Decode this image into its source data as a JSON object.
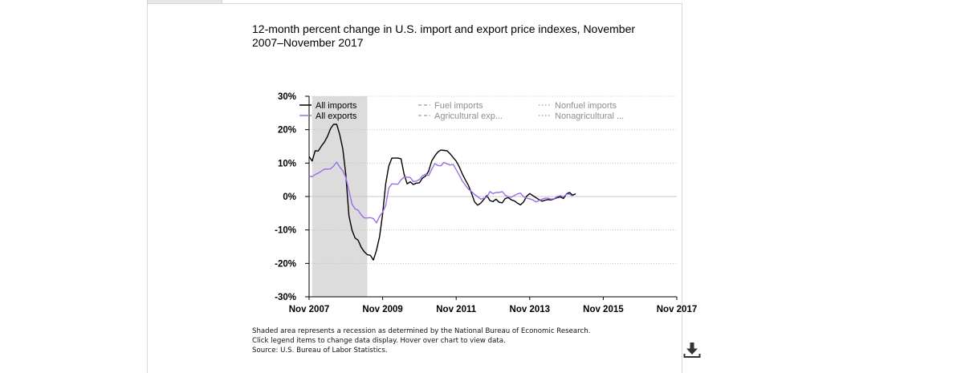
{
  "chart_data": {
    "type": "line",
    "title": "12-month percent change in U.S. import and export price indexes, November 2007–November 2017",
    "yticks": [
      30,
      20,
      10,
      0,
      -10,
      -20,
      -30
    ],
    "ytick_suffix": "%",
    "ylim": [
      -30,
      30
    ],
    "xticks": [
      "Nov 2007",
      "Nov 2009",
      "Nov 2011",
      "Nov 2013",
      "Nov 2015",
      "Nov 2017"
    ],
    "x_start": "Nov 2007",
    "x_end": "Nov 2017",
    "recession": {
      "start": "Dec 2007",
      "end": "Jun 2009"
    },
    "grid": true,
    "legend_position": "top",
    "legend": [
      {
        "label": "All imports",
        "style": "solid",
        "color": "#000000",
        "active": true
      },
      {
        "label": "All exports",
        "style": "solid",
        "color": "#9b6ee6",
        "active": true
      },
      {
        "label": "Fuel imports",
        "style": "dashed",
        "color": "#9a9a9a",
        "active": false
      },
      {
        "label": "Agricultural exp...",
        "style": "dashed",
        "color": "#9a9a9a",
        "active": false
      },
      {
        "label": "Nonfuel imports",
        "style": "dotted",
        "color": "#9a9a9a",
        "active": false
      },
      {
        "label": "Nonagricultural ...",
        "style": "dotted",
        "color": "#9a9a9a",
        "active": false
      }
    ],
    "series": [
      {
        "name": "All imports",
        "color": "#000000",
        "start": "Nov 2007",
        "values": [
          12.0,
          10.6,
          13.7,
          13.6,
          15.1,
          16.3,
          18.0,
          20.3,
          21.6,
          21.6,
          18.5,
          14.2,
          6.4,
          -5.7,
          -10.0,
          -12.4,
          -13.1,
          -15.2,
          -16.5,
          -17.4,
          -17.6,
          -19.0,
          -16.0,
          -12.0,
          -5.2,
          3.8,
          9.1,
          11.5,
          11.5,
          11.5,
          11.3,
          6.7,
          3.8,
          4.4,
          3.6,
          4.0,
          4.1,
          5.5,
          6.1,
          7.6,
          10.6,
          12.1,
          13.3,
          13.9,
          13.8,
          13.7,
          12.8,
          11.7,
          10.6,
          8.9,
          6.8,
          5.0,
          3.3,
          1.0,
          -1.6,
          -2.6,
          -2.0,
          -0.9,
          0.3,
          -1.2,
          -1.5,
          -0.8,
          -1.7,
          -1.9,
          -0.6,
          -0.3,
          -1.0,
          -1.3,
          -2.0,
          -2.5,
          -1.6,
          0.1,
          0.9,
          0.3,
          -0.3,
          -0.9,
          -1.4,
          -1.1,
          -0.9,
          -1.0,
          -0.7,
          -0.3,
          -0.1,
          -0.6,
          0.8,
          1.2,
          0.4,
          0.8
        ]
      },
      {
        "name": "All exports",
        "color": "#9b6ee6",
        "start": "Nov 2007",
        "values": [
          6.2,
          5.9,
          6.6,
          7.0,
          7.6,
          8.2,
          8.2,
          8.3,
          9.1,
          10.3,
          8.8,
          7.7,
          5.7,
          1.8,
          -2.2,
          -3.7,
          -4.1,
          -5.5,
          -6.4,
          -6.4,
          -6.3,
          -6.6,
          -7.9,
          -5.9,
          -4.7,
          -2.7,
          2.5,
          3.8,
          3.7,
          3.7,
          5.0,
          5.8,
          5.8,
          5.7,
          4.5,
          4.6,
          5.1,
          6.2,
          6.7,
          6.3,
          8.1,
          9.9,
          9.3,
          9.2,
          10.2,
          9.8,
          9.4,
          9.6,
          8.1,
          6.4,
          4.7,
          3.4,
          2.2,
          1.5,
          0.6,
          0.0,
          -0.8,
          -0.5,
          -0.2,
          1.5,
          0.9,
          1.2,
          1.2,
          1.5,
          0.4,
          -0.1,
          -0.2,
          0.3,
          0.8,
          1.0,
          -0.1,
          -0.5,
          -0.7,
          -1.0,
          -1.6,
          -1.2,
          -0.8,
          -0.5,
          -0.5,
          -0.8,
          -0.6,
          0.0,
          0.3,
          -0.1,
          0.7,
          0.7,
          0.1
        ]
      }
    ]
  },
  "footnotes": [
    "Shaded area represents a recession as determined by the National Bureau of Economic Research.",
    "Click legend items to change data display. Hover over chart to view data.",
    "Source: U.S. Bureau of Labor Statistics."
  ],
  "download_icon": "download-icon"
}
